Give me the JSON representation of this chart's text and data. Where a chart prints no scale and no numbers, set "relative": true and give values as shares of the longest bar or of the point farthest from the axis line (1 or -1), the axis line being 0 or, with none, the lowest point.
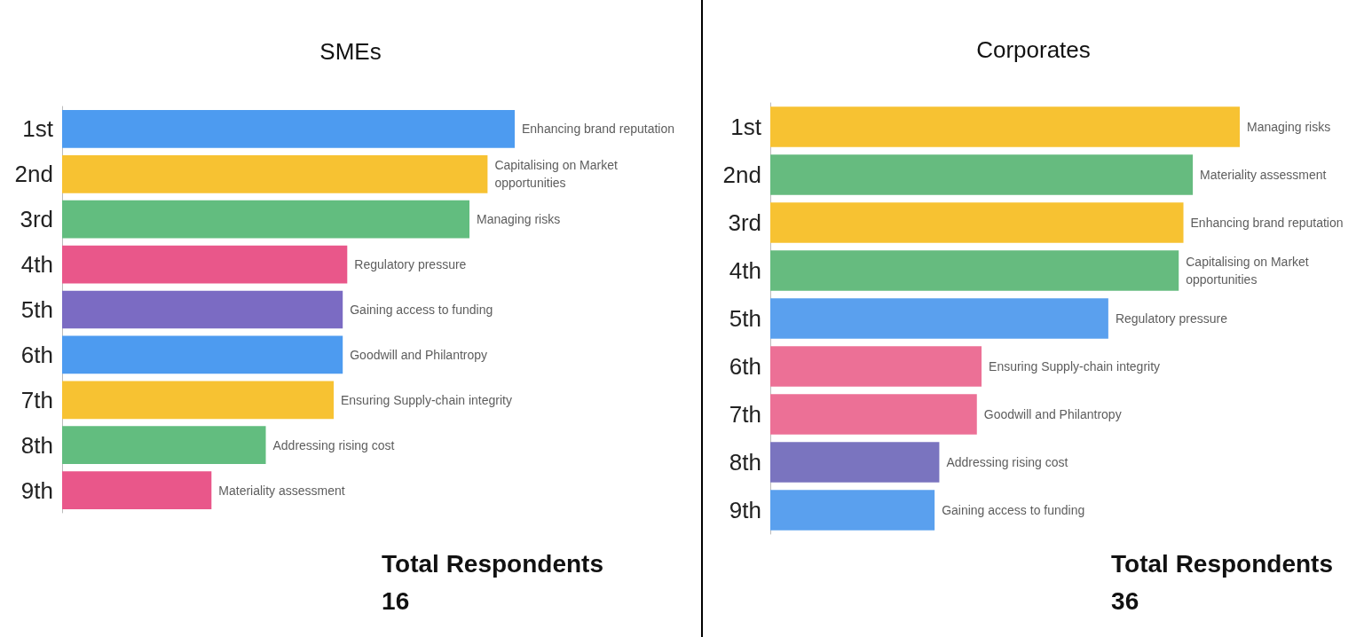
{
  "chart_data": [
    {
      "type": "bar",
      "orientation": "horizontal",
      "relative": true,
      "title": "SMEs",
      "categories": [
        "1st",
        "2nd",
        "3rd",
        "4th",
        "5th",
        "6th",
        "7th",
        "8th",
        "9th"
      ],
      "values": [
        1,
        0.94,
        0.9,
        0.63,
        0.62,
        0.62,
        0.6,
        0.45,
        0.33
      ],
      "colors": [
        "#4d9bf0",
        "#f7c232",
        "#62bd7f",
        "#e9578a",
        "#7b6bc3",
        "#4d9bf0",
        "#f7c232",
        "#62bd7f",
        "#e9578a"
      ],
      "annotations": [
        {
          "text": "Enhancing brand reputation",
          "x": 1,
          "y": "1st"
        },
        {
          "text": "Capitalising on Market opportunities",
          "x": 0.94,
          "y": "2nd"
        },
        {
          "text": "Managing risks",
          "x": 0.9,
          "y": "3rd"
        },
        {
          "text": "Regulatory pressure",
          "x": 0.63,
          "y": "4th"
        },
        {
          "text": "Gaining access to funding",
          "x": 0.62,
          "y": "5th"
        },
        {
          "text": "Goodwill and Philantropy",
          "x": 0.62,
          "y": "6th"
        },
        {
          "text": "Ensuring Supply-chain integrity",
          "x": 0.6,
          "y": "7th"
        },
        {
          "text": "Addressing rising cost",
          "x": 0.45,
          "y": "8th"
        },
        {
          "text": "Materiality assessment",
          "x": 0.33,
          "y": "9th"
        },
        "Total Respondents\n16"
      ]
    },
    {
      "type": "bar",
      "orientation": "horizontal",
      "relative": true,
      "title": "Corporates",
      "categories": [
        "1st",
        "2nd",
        "3rd",
        "4th",
        "5th",
        "6th",
        "7th",
        "8th",
        "9th"
      ],
      "values": [
        1,
        0.9,
        0.88,
        0.87,
        0.72,
        0.45,
        0.44,
        0.36,
        0.35
      ],
      "colors": [
        "#f7c232",
        "#66bb7f",
        "#f7c232",
        "#66bb7f",
        "#5aa0ee",
        "#ec7096",
        "#ec7096",
        "#7a74bf",
        "#5aa0ee"
      ],
      "annotations": [
        {
          "text": "Managing risks",
          "x": 1,
          "y": "1st"
        },
        {
          "text": "Materiality assessment",
          "x": 0.9,
          "y": "2nd"
        },
        {
          "text": "Enhancing brand reputation",
          "x": 0.88,
          "y": "3rd"
        },
        {
          "text": "Capitalising on Market opportunities",
          "x": 0.87,
          "y": "4th"
        },
        {
          "text": "Regulatory pressure",
          "x": 0.72,
          "y": "5th"
        },
        {
          "text": "Ensuring Supply-chain integrity",
          "x": 0.45,
          "y": "6th"
        },
        {
          "text": "Goodwill and Philantropy",
          "x": 0.44,
          "y": "7th"
        },
        {
          "text": "Addressing rising cost",
          "x": 0.36,
          "y": "8th"
        },
        {
          "text": "Gaining access to funding",
          "x": 0.35,
          "y": "9th"
        },
        "Total Respondents\n36"
      ]
    }
  ]
}
